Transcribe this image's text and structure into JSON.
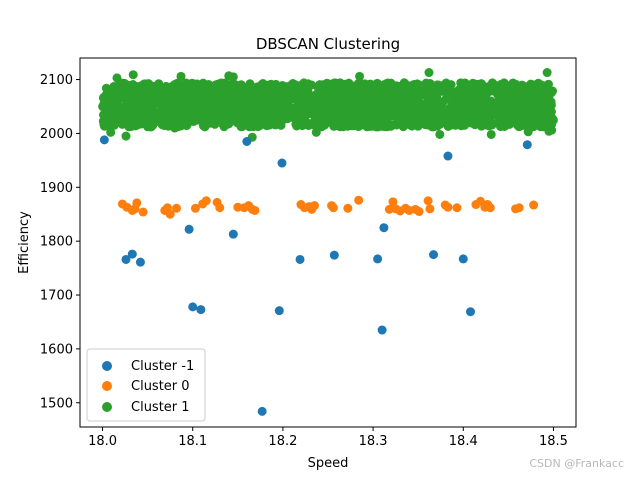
{
  "chart_data": {
    "type": "scatter",
    "title": "DBSCAN Clustering",
    "xlabel": "Speed",
    "ylabel": "Efficiency",
    "xlim": [
      17.975,
      18.525
    ],
    "ylim": [
      1455,
      2140
    ],
    "xticks": [
      "18.0",
      "18.1",
      "18.2",
      "18.3",
      "18.4",
      "18.5"
    ],
    "yticks": [
      "1500",
      "1600",
      "1700",
      "1800",
      "1900",
      "2000",
      "2100"
    ],
    "grid": false,
    "legend_position": "lower-left",
    "series": [
      {
        "name": "Cluster -1",
        "color": "#1f77b4",
        "points": [
          [
            18.002,
            1988
          ],
          [
            18.026,
            1766
          ],
          [
            18.033,
            1776
          ],
          [
            18.042,
            1761
          ],
          [
            18.096,
            1822
          ],
          [
            18.1,
            1678
          ],
          [
            18.109,
            1673
          ],
          [
            18.145,
            1813
          ],
          [
            18.16,
            1985
          ],
          [
            18.177,
            1484
          ],
          [
            18.196,
            1671
          ],
          [
            18.199,
            1945
          ],
          [
            18.219,
            1766
          ],
          [
            18.257,
            1774
          ],
          [
            18.305,
            1767
          ],
          [
            18.31,
            1635
          ],
          [
            18.312,
            1825
          ],
          [
            18.367,
            1775
          ],
          [
            18.383,
            1958
          ],
          [
            18.4,
            1767
          ],
          [
            18.408,
            1669
          ],
          [
            18.471,
            1979
          ]
        ]
      },
      {
        "name": "Cluster 0",
        "color": "#ff7f0e",
        "points": [
          [
            18.022,
            1869
          ],
          [
            18.027,
            1863
          ],
          [
            18.033,
            1857
          ],
          [
            18.036,
            1860
          ],
          [
            18.038,
            1871
          ],
          [
            18.045,
            1854
          ],
          [
            18.069,
            1857
          ],
          [
            18.072,
            1862
          ],
          [
            18.075,
            1850
          ],
          [
            18.082,
            1861
          ],
          [
            18.103,
            1861
          ],
          [
            18.111,
            1869
          ],
          [
            18.115,
            1875
          ],
          [
            18.127,
            1872
          ],
          [
            18.13,
            1862
          ],
          [
            18.15,
            1863
          ],
          [
            18.157,
            1862
          ],
          [
            18.162,
            1866
          ],
          [
            18.166,
            1859
          ],
          [
            18.169,
            1857
          ],
          [
            18.22,
            1868
          ],
          [
            18.224,
            1862
          ],
          [
            18.229,
            1864
          ],
          [
            18.232,
            1859
          ],
          [
            18.235,
            1866
          ],
          [
            18.254,
            1866
          ],
          [
            18.256,
            1862
          ],
          [
            18.272,
            1861
          ],
          [
            18.284,
            1876
          ],
          [
            18.318,
            1859
          ],
          [
            18.322,
            1873
          ],
          [
            18.325,
            1860
          ],
          [
            18.33,
            1856
          ],
          [
            18.336,
            1861
          ],
          [
            18.34,
            1857
          ],
          [
            18.347,
            1859
          ],
          [
            18.351,
            1855
          ],
          [
            18.361,
            1875
          ],
          [
            18.363,
            1860
          ],
          [
            18.38,
            1867
          ],
          [
            18.383,
            1863
          ],
          [
            18.393,
            1862
          ],
          [
            18.414,
            1868
          ],
          [
            18.419,
            1874
          ],
          [
            18.424,
            1863
          ],
          [
            18.427,
            1868
          ],
          [
            18.43,
            1862
          ],
          [
            18.458,
            1860
          ],
          [
            18.462,
            1862
          ],
          [
            18.478,
            1867
          ]
        ]
      },
      {
        "name": "Cluster 1",
        "color": "#2ca02c",
        "x_range": [
          18.0,
          18.5
        ],
        "y_range": [
          1995,
          2113
        ],
        "approx_point_count": 2000,
        "points": [
          [
            18.009,
            2002
          ],
          [
            18.016,
            2103
          ],
          [
            18.026,
            1995
          ],
          [
            18.034,
            2109
          ],
          [
            18.08,
            2010
          ],
          [
            18.087,
            2106
          ],
          [
            18.14,
            2107
          ],
          [
            18.145,
            2105
          ],
          [
            18.166,
            1993
          ],
          [
            18.237,
            2002
          ],
          [
            18.285,
            2106
          ],
          [
            18.362,
            2113
          ],
          [
            18.374,
            1998
          ],
          [
            18.431,
            1998
          ],
          [
            18.472,
            2003
          ],
          [
            18.493,
            2113
          ],
          [
            18.495,
            2004
          ],
          [
            18.498,
            2006
          ]
        ]
      }
    ]
  },
  "watermark": "CSDN @Frankacc"
}
